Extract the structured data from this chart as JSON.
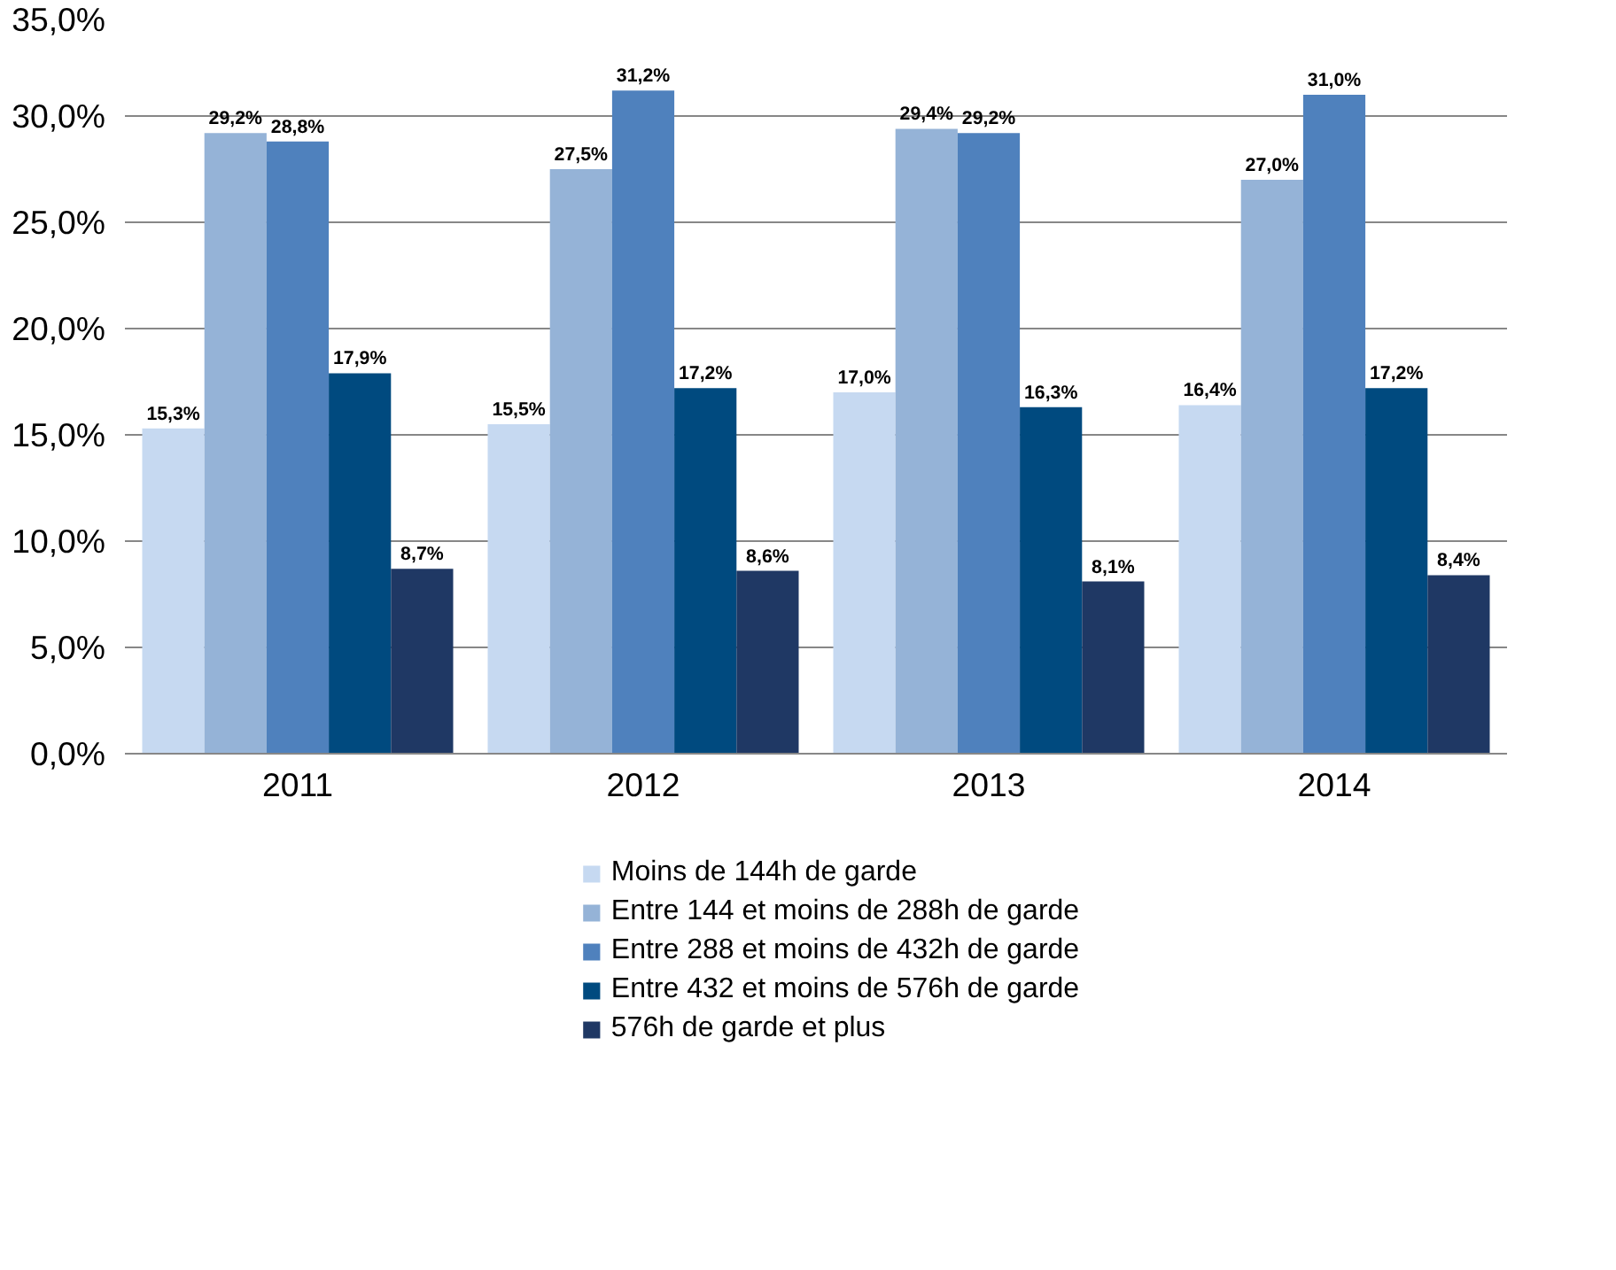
{
  "chart_data": {
    "type": "bar",
    "categories": [
      "2011",
      "2012",
      "2013",
      "2014"
    ],
    "series": [
      {
        "name": "Moins de 144h de garde",
        "color": "#c6d9f1",
        "values": [
          15.3,
          15.5,
          17.0,
          16.4
        ],
        "value_labels": [
          "15,3%",
          "15,5%",
          "17,0%",
          "16,4%"
        ]
      },
      {
        "name": "Entre 144 et moins de 288h de garde",
        "color": "#95b3d7",
        "values": [
          29.2,
          27.5,
          29.4,
          27.0
        ],
        "value_labels": [
          "29,2%",
          "27,5%",
          "29,4%",
          "27,0%"
        ]
      },
      {
        "name": "Entre 288 et moins de 432h de garde",
        "color": "#4f81bd",
        "values": [
          28.8,
          31.2,
          29.2,
          31.0
        ],
        "value_labels": [
          "28,8%",
          "31,2%",
          "29,2%",
          "31,0%"
        ]
      },
      {
        "name": "Entre 432 et moins de 576h de garde",
        "color": "#004a7f",
        "values": [
          17.9,
          17.2,
          16.3,
          17.2
        ],
        "value_labels": [
          "17,9%",
          "17,2%",
          "16,3%",
          "17,2%"
        ]
      },
      {
        "name": "576h de garde et plus",
        "color": "#1f3864",
        "values": [
          8.7,
          8.6,
          8.1,
          8.4
        ],
        "value_labels": [
          "8,7%",
          "8,6%",
          "8,1%",
          "8,4%"
        ]
      }
    ],
    "ylim": [
      0,
      35
    ],
    "yticks": [
      {
        "value": 0,
        "label": "0,0%"
      },
      {
        "value": 5,
        "label": "5,0%"
      },
      {
        "value": 10,
        "label": "10,0%"
      },
      {
        "value": 15,
        "label": "15,0%"
      },
      {
        "value": 20,
        "label": "20,0%"
      },
      {
        "value": 25,
        "label": "25,0%"
      },
      {
        "value": 30,
        "label": "30,0%"
      },
      {
        "value": 35,
        "label": "35,0%"
      }
    ],
    "grid": "y",
    "legend": "bottom"
  }
}
